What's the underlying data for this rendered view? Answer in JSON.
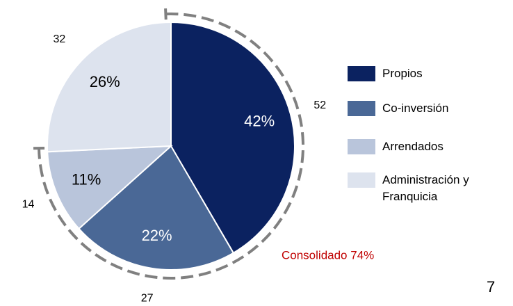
{
  "chart_data": {
    "type": "pie",
    "categories": [
      "Propios",
      "Co-inversión",
      "Arrendados",
      "Administración y Franquicia"
    ],
    "values": [
      42,
      22,
      11,
      26
    ],
    "value_labels": [
      "42%",
      "22%",
      "11%",
      "26%"
    ],
    "counts": [
      52,
      27,
      14,
      32
    ],
    "colors": [
      "#0b2260",
      "#4a6896",
      "#b9c5db",
      "#dde3ee"
    ],
    "annotation": "Consolidado 74%",
    "legend": "right"
  },
  "page_number": "7"
}
